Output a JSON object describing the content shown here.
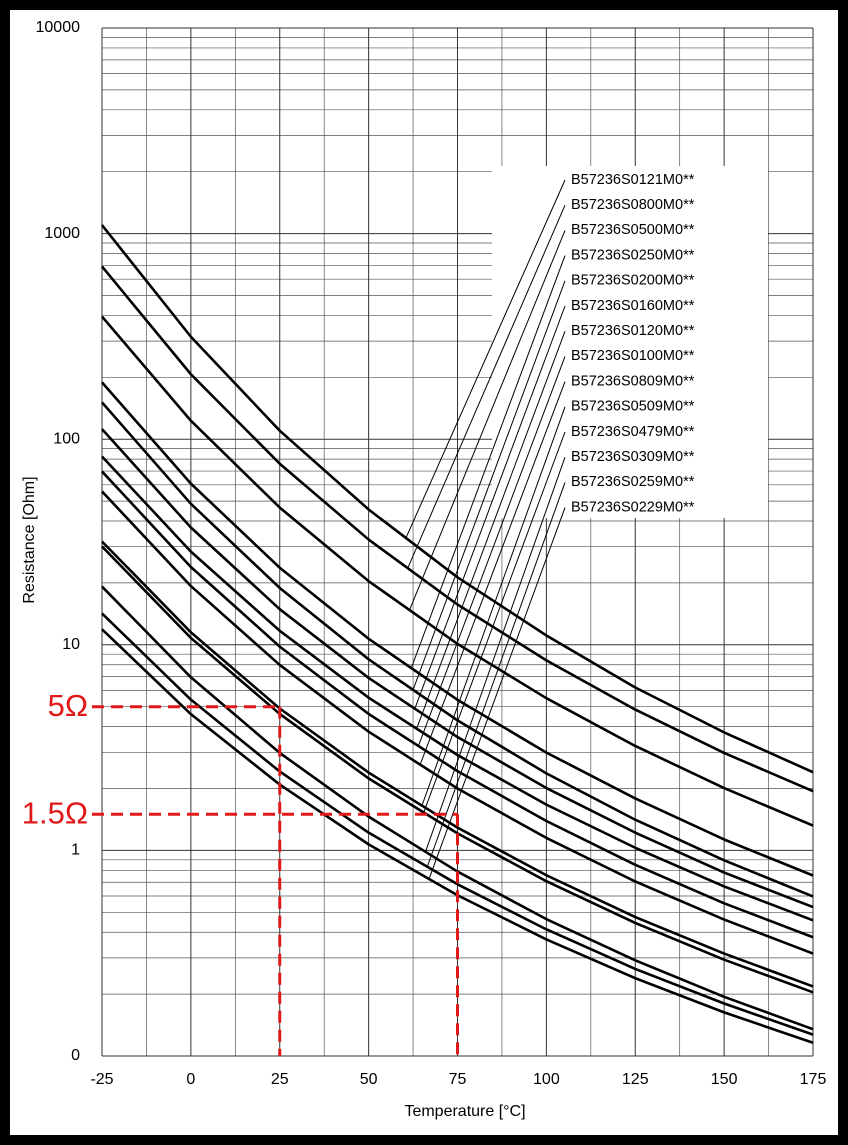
{
  "chart_data": {
    "type": "line",
    "x_label": "Temperature [°C]",
    "y_label": "Resistance  [Ohm]",
    "log_y": true,
    "grid": true,
    "x": [
      -25,
      0,
      25,
      50,
      75,
      100,
      125,
      150,
      175
    ],
    "xlim": [
      -25,
      175
    ],
    "xticks": [
      -25,
      0,
      25,
      50,
      75,
      100,
      125,
      150,
      175
    ],
    "xminorticks": [
      -12.5,
      12.5,
      37.5,
      62.5,
      87.5,
      112.5,
      137.5,
      162.5
    ],
    "ylim": [
      0.1,
      10000
    ],
    "yticks": [
      {
        "value": 0.1,
        "label": "0"
      },
      1,
      10,
      100,
      1000,
      10000
    ],
    "yminorticks": [
      0.2,
      0.3,
      0.4,
      0.5,
      0.6,
      0.7,
      0.8,
      0.9,
      2,
      3,
      4,
      5,
      6,
      7,
      8,
      9,
      20,
      30,
      40,
      50,
      60,
      70,
      80,
      90,
      200,
      300,
      400,
      500,
      600,
      700,
      800,
      900,
      2000,
      3000,
      4000,
      5000,
      6000,
      7000,
      8000,
      9000
    ],
    "series": [
      {
        "name": "B57236S0121M0**",
        "color": "#000000",
        "values": [
          1100,
          315,
          110,
          45.5,
          21.3,
          11.1,
          6.2,
          3.75,
          2.4
        ]
      },
      {
        "name": "B57236S0800M0**",
        "color": "#000000",
        "values": [
          692,
          207,
          76,
          32.5,
          15.7,
          8.4,
          4.84,
          2.98,
          1.94
        ]
      },
      {
        "name": "B57236S0500M0**",
        "color": "#000000",
        "values": [
          395,
          123,
          46.5,
          20.4,
          10.1,
          5.5,
          3.22,
          2.01,
          1.32
        ]
      },
      {
        "name": "B57236S0250M0**",
        "color": "#000000",
        "values": [
          189,
          60.8,
          23.7,
          10.7,
          5.4,
          2.99,
          1.79,
          1.13,
          0.755
        ]
      },
      {
        "name": "B57236S0200M0**",
        "color": "#000000",
        "values": [
          151,
          48.5,
          18.9,
          8.5,
          4.29,
          2.37,
          1.41,
          0.895,
          0.597
        ]
      },
      {
        "name": "B57236S0160M0**",
        "color": "#000000",
        "values": [
          112,
          37.2,
          14.9,
          6.9,
          3.56,
          2.01,
          1.22,
          0.78,
          0.53
        ]
      },
      {
        "name": "B57236S0120M0**",
        "color": "#000000",
        "values": [
          82.4,
          28.4,
          11.7,
          5.53,
          2.91,
          1.67,
          1.03,
          0.668,
          0.457
        ]
      },
      {
        "name": "B57236S0100M0**",
        "color": "#000000",
        "values": [
          69.7,
          23.9,
          9.8,
          4.61,
          2.43,
          1.39,
          0.851,
          0.553,
          0.378
        ]
      },
      {
        "name": "B57236S0809M0**",
        "color": "#000000",
        "values": [
          55.7,
          19.3,
          7.98,
          3.78,
          2.0,
          1.15,
          0.706,
          0.461,
          0.315
        ]
      },
      {
        "name": "B57236S0509M0**",
        "color": "#000000",
        "values": [
          31.8,
          11.5,
          4.9,
          2.39,
          1.29,
          0.757,
          0.474,
          0.315,
          0.218
        ]
      },
      {
        "name": "B57236S0479M0**",
        "color": "#000000",
        "values": [
          30.1,
          10.8,
          4.61,
          2.24,
          1.21,
          0.708,
          0.444,
          0.294,
          0.204
        ]
      },
      {
        "name": "B57236S0309M0**",
        "color": "#000000",
        "values": [
          19.2,
          6.95,
          2.98,
          1.46,
          0.789,
          0.463,
          0.292,
          0.194,
          0.135
        ]
      },
      {
        "name": "B57236S0259M0**",
        "color": "#000000",
        "values": [
          14.2,
          5.41,
          2.42,
          1.22,
          0.684,
          0.413,
          0.265,
          0.18,
          0.127
        ]
      },
      {
        "name": "B57236S0229M0**",
        "color": "#000000",
        "values": [
          11.9,
          4.6,
          2.09,
          1.07,
          0.605,
          0.369,
          0.239,
          0.163,
          0.116
        ]
      }
    ],
    "annotations": [
      {
        "text": "5Ω",
        "x": 25,
        "y": 5,
        "color": "#e01818"
      },
      {
        "text": "1.5Ω",
        "x": 75,
        "y": 1.5,
        "color": "#e01818"
      }
    ]
  }
}
